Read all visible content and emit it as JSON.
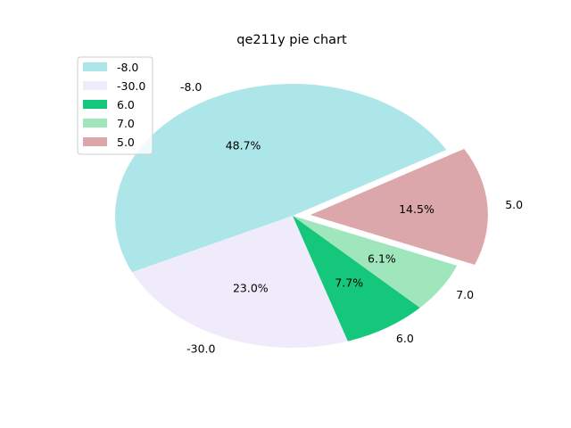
{
  "chart_data": {
    "type": "pie",
    "title": "qe211y pie chart",
    "labels": [
      "-8.0",
      "-30.0",
      "6.0",
      "7.0",
      "5.0"
    ],
    "percentages": [
      48.7,
      23.0,
      7.7,
      6.1,
      14.5
    ],
    "percent_labels": [
      "48.7%",
      "23.0%",
      "7.7%",
      "6.1%",
      "14.5%"
    ],
    "colors": [
      "#ace6e9",
      "#f0ebfa",
      "#15c77a",
      "#a0e6bc",
      "#dba7aa"
    ],
    "exploded": [
      false,
      false,
      false,
      false,
      true
    ],
    "start_angle_deg": 30,
    "legend_position": "upper-left"
  }
}
